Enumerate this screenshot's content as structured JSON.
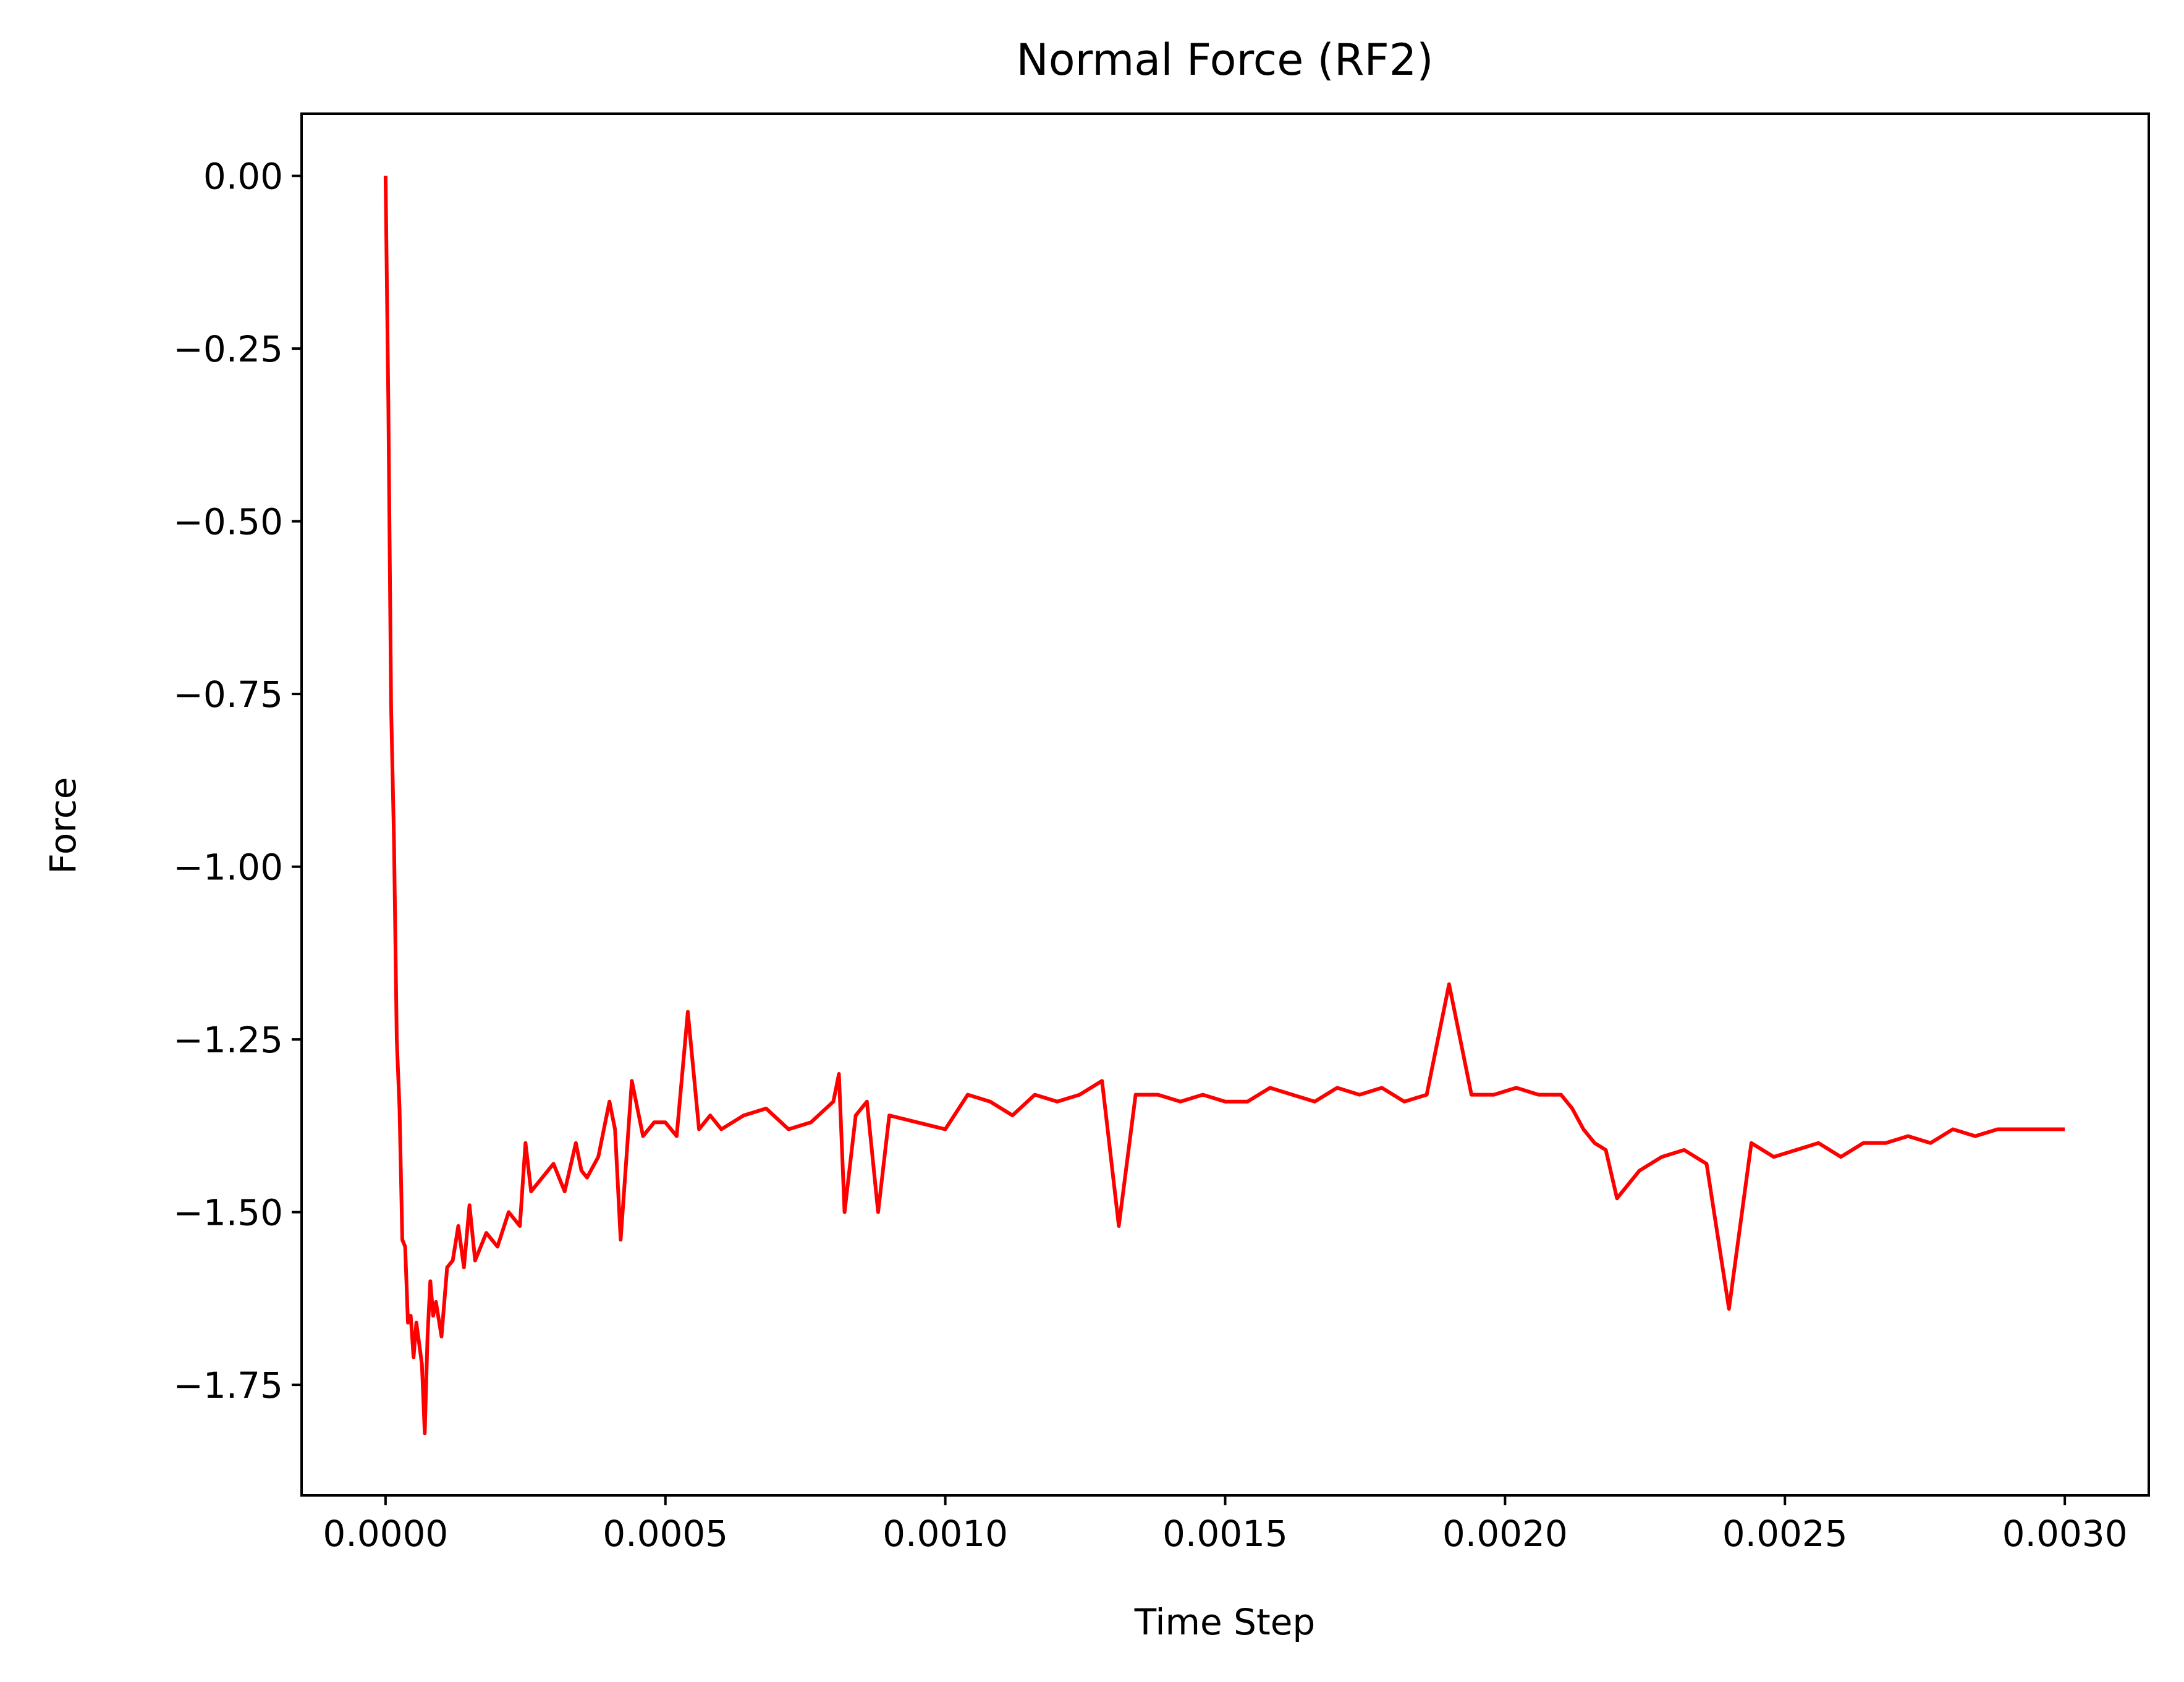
{
  "chart_data": {
    "type": "line",
    "title": "Normal Force (RF2)",
    "xlabel": "Time Step",
    "ylabel": "Force",
    "xlim": [
      -0.00015,
      0.00315
    ],
    "ylim": [
      -1.91,
      0.09
    ],
    "xticks": [
      0.0,
      0.0005,
      0.001,
      0.0015,
      0.002,
      0.0025,
      0.003
    ],
    "xtick_labels": [
      "0.0000",
      "0.0005",
      "0.0010",
      "0.0015",
      "0.0020",
      "0.0025",
      "0.0030"
    ],
    "yticks": [
      0.0,
      -0.25,
      -0.5,
      -0.75,
      -1.0,
      -1.25,
      -1.5,
      -1.75
    ],
    "ytick_labels": [
      "0.00",
      "−0.25",
      "−0.50",
      "−0.75",
      "−1.00",
      "−1.25",
      "−1.50",
      "−1.75"
    ],
    "grid": false,
    "series": [
      {
        "color": "#ff0000",
        "x": [
          0.0,
          5e-06,
          1e-05,
          1.5e-05,
          2e-05,
          2.5e-05,
          3e-05,
          3.5e-05,
          4e-05,
          4.5e-05,
          5e-05,
          5.5e-05,
          6e-05,
          6.5e-05,
          7e-05,
          7.5e-05,
          8e-05,
          8.5e-05,
          9e-05,
          0.0001,
          0.00011,
          0.00012,
          0.00013,
          0.00014,
          0.00015,
          0.00016,
          0.00018,
          0.0002,
          0.00022,
          0.00024,
          0.00025,
          0.00026,
          0.00028,
          0.0003,
          0.00032,
          0.00034,
          0.00035,
          0.00036,
          0.00038,
          0.0004,
          0.00041,
          0.00042,
          0.00044,
          0.00046,
          0.00048,
          0.0005,
          0.00052,
          0.00054,
          0.00056,
          0.00058,
          0.0006,
          0.00064,
          0.00068,
          0.00072,
          0.00076,
          0.0008,
          0.00081,
          0.00082,
          0.00084,
          0.00086,
          0.00088,
          0.0009,
          0.00095,
          0.001,
          0.00104,
          0.00108,
          0.00112,
          0.00116,
          0.0012,
          0.00124,
          0.00128,
          0.00131,
          0.00134,
          0.00138,
          0.00142,
          0.00146,
          0.0015,
          0.00154,
          0.00158,
          0.00162,
          0.00166,
          0.0017,
          0.00174,
          0.00178,
          0.00182,
          0.00186,
          0.0019,
          0.00194,
          0.00198,
          0.00202,
          0.00206,
          0.0021,
          0.00212,
          0.00214,
          0.00216,
          0.00218,
          0.0022,
          0.00224,
          0.00228,
          0.00232,
          0.00236,
          0.0024,
          0.00244,
          0.00248,
          0.00252,
          0.00256,
          0.0026,
          0.00264,
          0.00268,
          0.00272,
          0.00276,
          0.0028,
          0.00284,
          0.00288,
          0.00292,
          0.00296,
          0.003
        ],
        "y": [
          0.0,
          -0.33,
          -0.77,
          -0.96,
          -1.25,
          -1.35,
          -1.54,
          -1.55,
          -1.66,
          -1.65,
          -1.71,
          -1.66,
          -1.69,
          -1.72,
          -1.82,
          -1.68,
          -1.6,
          -1.65,
          -1.63,
          -1.68,
          -1.58,
          -1.57,
          -1.52,
          -1.58,
          -1.49,
          -1.57,
          -1.53,
          -1.55,
          -1.5,
          -1.52,
          -1.4,
          -1.47,
          -1.45,
          -1.43,
          -1.47,
          -1.4,
          -1.44,
          -1.45,
          -1.42,
          -1.34,
          -1.38,
          -1.54,
          -1.31,
          -1.39,
          -1.37,
          -1.37,
          -1.39,
          -1.21,
          -1.38,
          -1.36,
          -1.38,
          -1.36,
          -1.35,
          -1.38,
          -1.37,
          -1.34,
          -1.3,
          -1.5,
          -1.36,
          -1.34,
          -1.5,
          -1.36,
          -1.37,
          -1.38,
          -1.33,
          -1.34,
          -1.36,
          -1.33,
          -1.34,
          -1.33,
          -1.31,
          -1.52,
          -1.33,
          -1.33,
          -1.34,
          -1.33,
          -1.34,
          -1.34,
          -1.32,
          -1.33,
          -1.34,
          -1.32,
          -1.33,
          -1.32,
          -1.34,
          -1.33,
          -1.17,
          -1.33,
          -1.33,
          -1.32,
          -1.33,
          -1.33,
          -1.35,
          -1.38,
          -1.4,
          -1.41,
          -1.48,
          -1.44,
          -1.42,
          -1.41,
          -1.43,
          -1.64,
          -1.4,
          -1.42,
          -1.41,
          -1.4,
          -1.42,
          -1.4,
          -1.4,
          -1.39,
          -1.4,
          -1.38,
          -1.39,
          -1.38,
          -1.38,
          -1.38,
          -1.38
        ]
      }
    ]
  }
}
